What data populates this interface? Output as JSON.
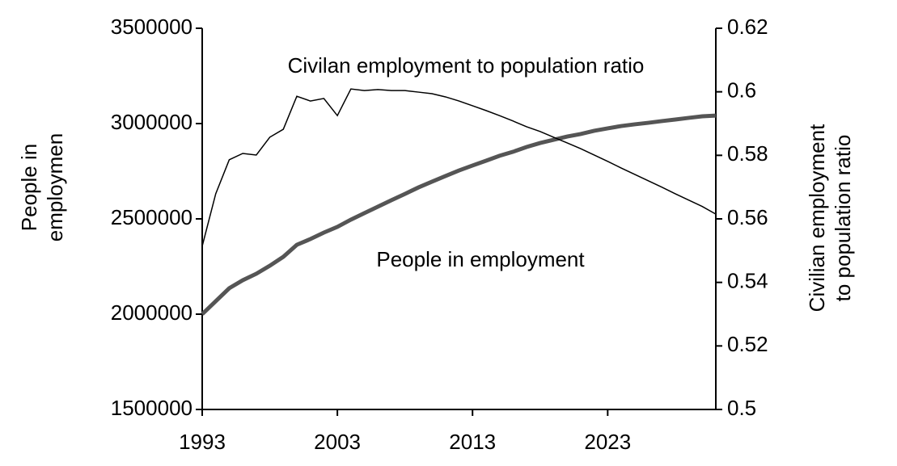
{
  "chart_data": {
    "type": "line",
    "x": [
      1993,
      1994,
      1995,
      1996,
      1997,
      1998,
      1999,
      2000,
      2001,
      2002,
      2003,
      2004,
      2005,
      2006,
      2007,
      2008,
      2009,
      2010,
      2011,
      2012,
      2013,
      2014,
      2015,
      2016,
      2017,
      2018,
      2019,
      2020,
      2021,
      2022,
      2023,
      2024,
      2025,
      2026,
      2027,
      2028,
      2029,
      2030,
      2031
    ],
    "xlim": [
      1993,
      2031
    ],
    "xticks": [
      1993,
      2003,
      2013,
      2023
    ],
    "ylabel": [
      "People in",
      "employmen"
    ],
    "y2label": [
      "Civilian employment",
      "to population ratio"
    ],
    "ylim": [
      1500000,
      3500000
    ],
    "yticks": [
      1500000,
      2000000,
      2500000,
      3000000,
      3500000
    ],
    "y2lim": [
      0.5,
      0.62
    ],
    "y2ticks": [
      0.5,
      0.52,
      0.54,
      0.56,
      0.58,
      0.6,
      0.62
    ],
    "series": [
      {
        "name": "People in employment",
        "color": "#555555",
        "values": [
          2000000,
          2068000,
          2136000,
          2178000,
          2212000,
          2254000,
          2301000,
          2364000,
          2394000,
          2428000,
          2458000,
          2496000,
          2530000,
          2564000,
          2598000,
          2631000,
          2665000,
          2695000,
          2725000,
          2754000,
          2780000,
          2805000,
          2831000,
          2852000,
          2877000,
          2898000,
          2915000,
          2932000,
          2945000,
          2962000,
          2975000,
          2987000,
          2996000,
          3004000,
          3013000,
          3021000,
          3030000,
          3038000,
          3042000
        ]
      },
      {
        "name": "Civilan employment to population ratio",
        "color": "#000000",
        "axis": "y2",
        "values": [
          0.5514,
          0.5679,
          0.5786,
          0.5806,
          0.5801,
          0.5857,
          0.5882,
          0.5986,
          0.5971,
          0.5979,
          0.5925,
          0.6009,
          0.6004,
          0.6007,
          0.6004,
          0.6004,
          0.5999,
          0.5994,
          0.5984,
          0.5971,
          0.5956,
          0.5941,
          0.5925,
          0.5908,
          0.589,
          0.5875,
          0.5857,
          0.5839,
          0.5821,
          0.5801,
          0.5781,
          0.576,
          0.574,
          0.572,
          0.57,
          0.5679,
          0.5659,
          0.5639,
          0.5615
        ]
      }
    ]
  }
}
